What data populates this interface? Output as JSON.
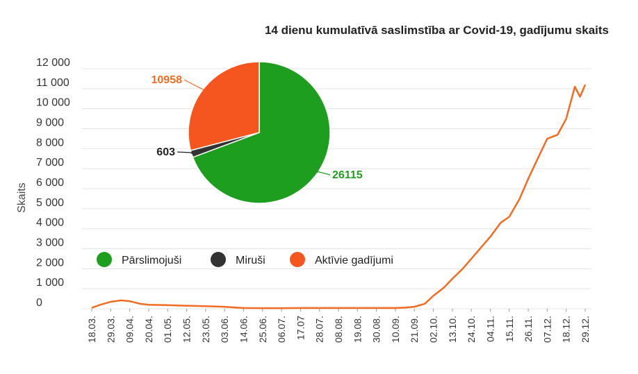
{
  "chart_data": [
    {
      "type": "line",
      "title": "14 dienu kumulatīvā saslimstība ar Covid-19, gadījumu skaits",
      "ylabel": "Skaits",
      "ylim": [
        0,
        12000
      ],
      "y_ticks": [
        "12 000",
        "11 000",
        "10 000",
        "9 000",
        "8 000",
        "7 000",
        "6 000",
        "5 000",
        "4 000",
        "3 000",
        "2 000",
        "1 000",
        "0"
      ],
      "x_ticks": [
        "18.03.",
        "29.03.",
        "09.04.",
        "20.04.",
        "01.05.",
        "12.05.",
        "23.05.",
        "03.06.",
        "14.06.",
        "25.06.",
        "06.07.",
        "17.07",
        "28.07.",
        "08.08.",
        "19.08.",
        "30.08.",
        "10.09.",
        "21.09.",
        "02.10.",
        "13.10.",
        "24.10.",
        "04.11.",
        "15.11.",
        "26.11.",
        "07.12.",
        "18.12.",
        "29.12."
      ],
      "grid": true,
      "series": [
        {
          "color": "#f26b21",
          "x": [
            "18.03.",
            "23.03.",
            "29.03.",
            "04.04.",
            "09.04.",
            "15.04.",
            "20.04.",
            "01.05.",
            "12.05.",
            "23.05.",
            "03.06.",
            "08.06.",
            "14.06.",
            "25.06.",
            "06.07.",
            "17.07",
            "28.07.",
            "08.08.",
            "19.08.",
            "30.08.",
            "10.09.",
            "16.09.",
            "21.09.",
            "27.09.",
            "02.10.",
            "08.10.",
            "13.10.",
            "19.10.",
            "24.10.",
            "30.10.",
            "04.11.",
            "10.11.",
            "15.11.",
            "21.11.",
            "26.11.",
            "02.12.",
            "07.12.",
            "13.12.",
            "18.12.",
            "23.12.",
            "26.12.",
            "29.12."
          ],
          "values": [
            50,
            200,
            350,
            420,
            380,
            250,
            200,
            180,
            150,
            130,
            100,
            70,
            40,
            30,
            30,
            40,
            40,
            40,
            40,
            40,
            40,
            60,
            100,
            250,
            650,
            1050,
            1500,
            2000,
            2500,
            3100,
            3600,
            4300,
            4600,
            5500,
            6500,
            7600,
            8500,
            8700,
            9500,
            11100,
            10600,
            11200
          ]
        }
      ]
    },
    {
      "type": "pie",
      "slices": [
        {
          "name": "Pārslimojuši",
          "value": 26115,
          "label": "26115",
          "color": "#1e9e1e"
        },
        {
          "name": "Miruši",
          "value": 603,
          "label": "603",
          "color": "#333333"
        },
        {
          "name": "Aktīvie gadījumi",
          "value": 10958,
          "label": "10958",
          "color": "#f5561f"
        }
      ]
    }
  ]
}
